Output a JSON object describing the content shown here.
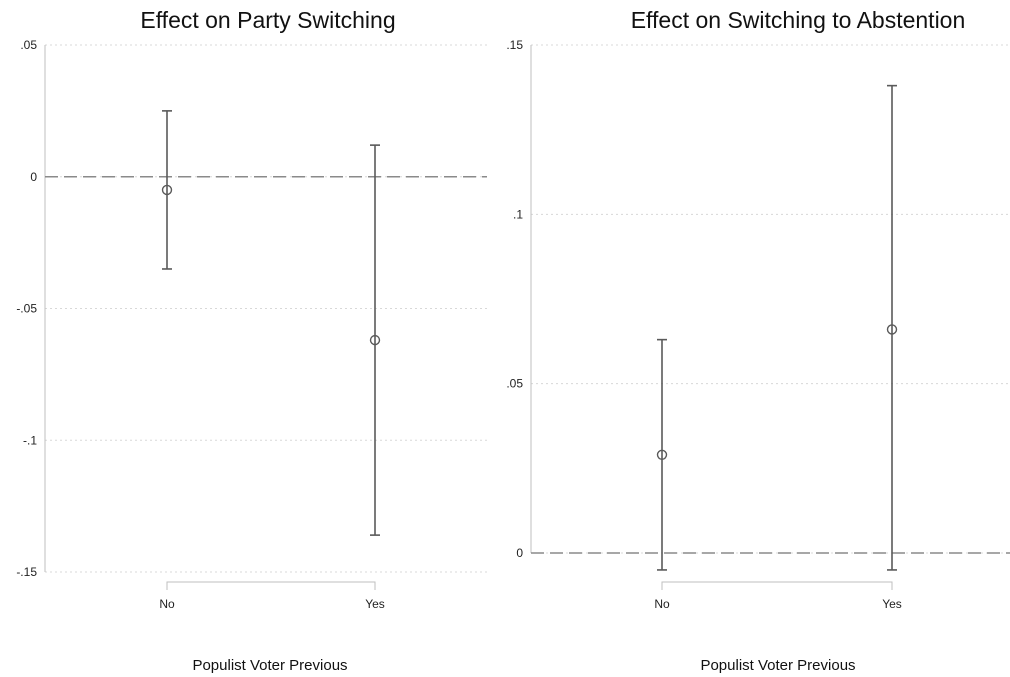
{
  "chart_data": [
    {
      "type": "scatter",
      "title": "Effect on Party Switching",
      "xlabel": "Populist Voter Previous",
      "ylabel": "",
      "categories": [
        "No",
        "Yes"
      ],
      "ylim": [
        -0.15,
        0.05
      ],
      "yticks": [
        {
          "value": 0.05,
          "label": ".05"
        },
        {
          "value": 0,
          "label": "0"
        },
        {
          "value": -0.05,
          "label": "-.05"
        },
        {
          "value": -0.1,
          "label": "-.1"
        },
        {
          "value": -0.15,
          "label": "-.15"
        }
      ],
      "reference_line": 0,
      "grid": true,
      "series": [
        {
          "estimates": [
            -0.005,
            -0.062
          ],
          "ci_lower": [
            -0.035,
            -0.136
          ],
          "ci_upper": [
            0.025,
            0.012
          ]
        }
      ]
    },
    {
      "type": "scatter",
      "title": "Effect on Switching to Abstention",
      "xlabel": "Populist Voter Previous",
      "ylabel": "",
      "categories": [
        "No",
        "Yes"
      ],
      "ylim": [
        0,
        0.15
      ],
      "yticks": [
        {
          "value": 0.15,
          "label": ".15"
        },
        {
          "value": 0.1,
          "label": ".1"
        },
        {
          "value": 0.05,
          "label": ".05"
        },
        {
          "value": 0,
          "label": "0"
        }
      ],
      "reference_line": 0,
      "grid": true,
      "series": [
        {
          "estimates": [
            0.029,
            0.066
          ],
          "ci_lower": [
            -0.005,
            -0.005
          ],
          "ci_upper": [
            0.063,
            0.138
          ]
        }
      ]
    }
  ],
  "colors": {
    "marker": "#5a5a5a",
    "reference_line": "#8a8a8a",
    "grid": "#d8d8d8"
  }
}
